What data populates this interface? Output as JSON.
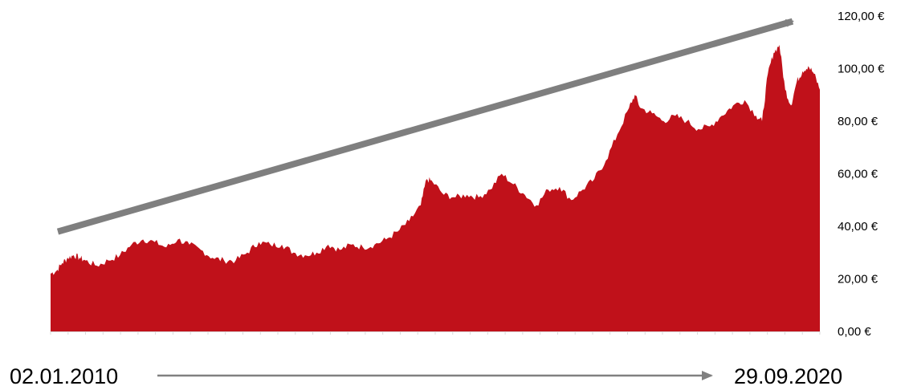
{
  "chart_data": {
    "type": "area",
    "title": "",
    "xlabel": "",
    "ylabel": "",
    "x_start": "02.01.2010",
    "x_end": "29.09.2020",
    "ylim": [
      0,
      120
    ],
    "y_ticks": [
      0,
      20,
      40,
      60,
      80,
      100,
      120
    ],
    "y_tick_labels": [
      "0,00 €",
      "20,00 €",
      "40,00 €",
      "60,00 €",
      "80,00 €",
      "100,00 €",
      "120,00 €"
    ],
    "grid": false,
    "legend": "none",
    "trend_arrow": {
      "from": [
        "2010-01",
        38
      ],
      "to": [
        "2020-09",
        118
      ]
    },
    "series": [
      {
        "color": "#c0111a",
        "points": [
          [
            "2010-01",
            22
          ],
          [
            "2010-02",
            23
          ],
          [
            "2010-03",
            26
          ],
          [
            "2010-04",
            28
          ],
          [
            "2010-05",
            29
          ],
          [
            "2010-06",
            28
          ],
          [
            "2010-07",
            27
          ],
          [
            "2010-09",
            25
          ],
          [
            "2010-11",
            27
          ],
          [
            "2011-01",
            29
          ],
          [
            "2011-03",
            33
          ],
          [
            "2011-05",
            35
          ],
          [
            "2011-07",
            34
          ],
          [
            "2011-09",
            32
          ],
          [
            "2011-11",
            35
          ],
          [
            "2012-01",
            33
          ],
          [
            "2012-03",
            31
          ],
          [
            "2012-05",
            28
          ],
          [
            "2012-07",
            27
          ],
          [
            "2012-09",
            27
          ],
          [
            "2012-11",
            30
          ],
          [
            "2013-01",
            34
          ],
          [
            "2013-03",
            33
          ],
          [
            "2013-05",
            33
          ],
          [
            "2013-07",
            30
          ],
          [
            "2013-09",
            29
          ],
          [
            "2013-11",
            30
          ],
          [
            "2014-01",
            33
          ],
          [
            "2014-03",
            31
          ],
          [
            "2014-05",
            33
          ],
          [
            "2014-07",
            32
          ],
          [
            "2014-09",
            33
          ],
          [
            "2014-11",
            35
          ],
          [
            "2015-01",
            38
          ],
          [
            "2015-03",
            42
          ],
          [
            "2015-05",
            48
          ],
          [
            "2015-06",
            58
          ],
          [
            "2015-07",
            57
          ],
          [
            "2015-09",
            52
          ],
          [
            "2015-11",
            51
          ],
          [
            "2016-01",
            52
          ],
          [
            "2016-03",
            51
          ],
          [
            "2016-05",
            54
          ],
          [
            "2016-07",
            60
          ],
          [
            "2016-09",
            56
          ],
          [
            "2016-11",
            52
          ],
          [
            "2017-01",
            48
          ],
          [
            "2017-03",
            54
          ],
          [
            "2017-05",
            55
          ],
          [
            "2017-07",
            50
          ],
          [
            "2017-09",
            54
          ],
          [
            "2017-11",
            58
          ],
          [
            "2018-01",
            65
          ],
          [
            "2018-03",
            75
          ],
          [
            "2018-05",
            85
          ],
          [
            "2018-06",
            90
          ],
          [
            "2018-07",
            85
          ],
          [
            "2018-09",
            83
          ],
          [
            "2018-11",
            80
          ],
          [
            "2019-01",
            82
          ],
          [
            "2019-03",
            80
          ],
          [
            "2019-05",
            77
          ],
          [
            "2019-07",
            78
          ],
          [
            "2019-09",
            82
          ],
          [
            "2019-11",
            86
          ],
          [
            "2020-01",
            88
          ],
          [
            "2020-03",
            82
          ],
          [
            "2020-04",
            80
          ],
          [
            "2020-05",
            98
          ],
          [
            "2020-06",
            106
          ],
          [
            "2020-07",
            109
          ],
          [
            "2020-08",
            92
          ],
          [
            "2020-09",
            86
          ],
          [
            "2020-10",
            95
          ],
          [
            "2020-11",
            99
          ],
          [
            "2020-12",
            101
          ],
          [
            "2021-01",
            98
          ],
          [
            "2021-02",
            92
          ]
        ]
      }
    ]
  }
}
